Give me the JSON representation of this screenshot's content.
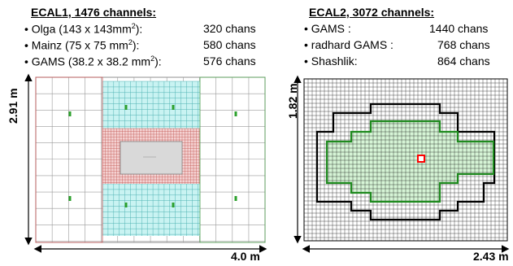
{
  "ecal1": {
    "title": "ECAL1, 1476 channels:",
    "rows": [
      {
        "pre": "• Olga (143 x 143mm",
        "sup": "2",
        "post": "):",
        "value": "320 chans"
      },
      {
        "pre": "• Mainz (75 x 75 mm",
        "sup": "2",
        "post": "):",
        "value": "580 chans"
      },
      {
        "pre": "• GAMS (38.2 x 38.2 mm",
        "sup": "2",
        "post": "):",
        "value": "576 chans"
      }
    ],
    "height_label": "2.91 m",
    "width_label": "4.0 m"
  },
  "ecal2": {
    "title": "ECAL2, 3072 channels:",
    "rows": [
      {
        "label": "• GAMS :",
        "value": "1440 chans"
      },
      {
        "label": "• radhard GAMS :",
        "value": "768 chans"
      },
      {
        "label": "• Shashlik:",
        "value": "864 chans"
      }
    ],
    "height_label": "1.82 m",
    "width_label": "2.43 m"
  },
  "colors": {
    "olga_grid": "#9a9a9a",
    "mainz_fill": "#c9f3f2",
    "mainz_grid": "#4fb3b3",
    "gams_fill": "#f4d2d2",
    "gams_grid": "#c0504d",
    "ecal2_outer": "#000000",
    "ecal2_inner_fill": "#d6f4d6",
    "ecal2_inner_line": "#1e8a1e",
    "center_marker": "#ff0000"
  }
}
